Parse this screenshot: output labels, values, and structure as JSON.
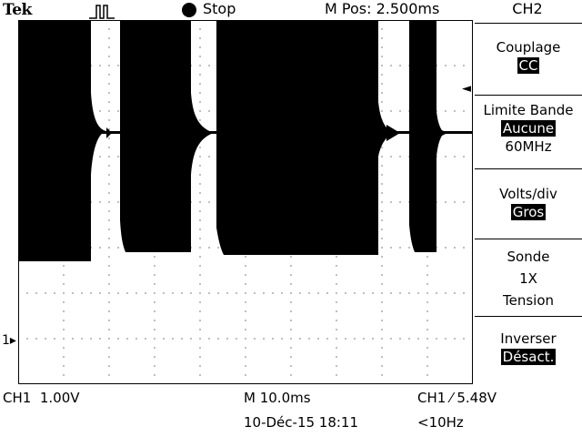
{
  "header": {
    "brand": "Tek",
    "trigger_mode_icon": "pulse-trigger-icon",
    "acquisition_state": "Stop",
    "horizontal_position": "M Pos: 2.500ms"
  },
  "side_menu": {
    "title": "CH2",
    "items": [
      {
        "label": "Couplage",
        "value": "CC",
        "value_inverted": true
      },
      {
        "label": "Limite Bande",
        "value": "Aucune",
        "value_inverted": true,
        "extra": "60MHz"
      },
      {
        "label": "Volts/div",
        "value": "Gros",
        "value_inverted": true
      },
      {
        "label": "Sonde",
        "value": "1X",
        "extra": "Tension"
      },
      {
        "label": "Inverser",
        "value": "Désact.",
        "value_inverted": true
      }
    ]
  },
  "markers": {
    "ch1_ground": "1",
    "trigger_level_arrow": "◄"
  },
  "footer": {
    "ch1_scale": "CH1  1.00V",
    "time_scale": "M 10.0ms",
    "trigger_info": "CH1 ⁄ 5.48V",
    "date_time": "10-Déc-15 18:11",
    "frequency": "<10Hz"
  },
  "colors": {
    "trace": "#000000",
    "grid": "#000000",
    "background": "#ffffff"
  }
}
